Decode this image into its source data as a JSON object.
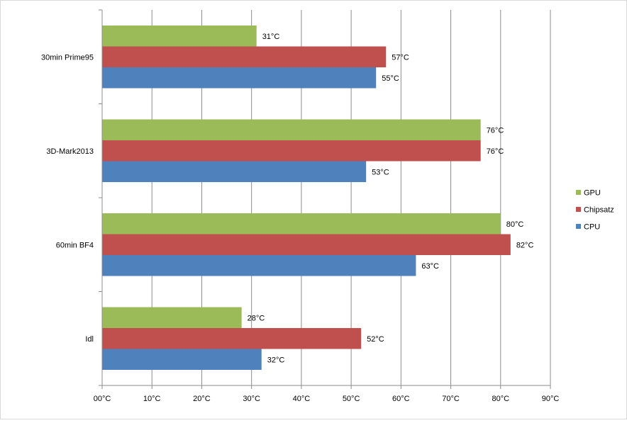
{
  "chart_data": {
    "type": "bar",
    "orientation": "horizontal",
    "categories": [
      "30min Prime95",
      "3D-Mark2013",
      "60min BF4",
      "Idl"
    ],
    "series": [
      {
        "name": "GPU",
        "color": "#9BBB59",
        "values": [
          31,
          76,
          80,
          28
        ],
        "labels": [
          "31°C",
          "76°C",
          "80°C",
          "28°C"
        ]
      },
      {
        "name": "Chipsatz",
        "color": "#C0504D",
        "values": [
          57,
          76,
          82,
          52
        ],
        "labels": [
          "57°C",
          "76°C",
          "82°C",
          "52°C"
        ]
      },
      {
        "name": "CPU",
        "color": "#4F81BD",
        "values": [
          55,
          53,
          63,
          32
        ],
        "labels": [
          "55°C",
          "53°C",
          "63°C",
          "32°C"
        ]
      }
    ],
    "xlim": [
      0,
      90
    ],
    "xticks": [
      0,
      10,
      20,
      30,
      40,
      50,
      60,
      70,
      80,
      90
    ],
    "xtick_labels": [
      "00°C",
      "10°C",
      "20°C",
      "30°C",
      "40°C",
      "50°C",
      "60°C",
      "70°C",
      "80°C",
      "90°C"
    ],
    "grid": true,
    "legend_position": "right",
    "title": "",
    "xlabel": "",
    "ylabel": ""
  }
}
